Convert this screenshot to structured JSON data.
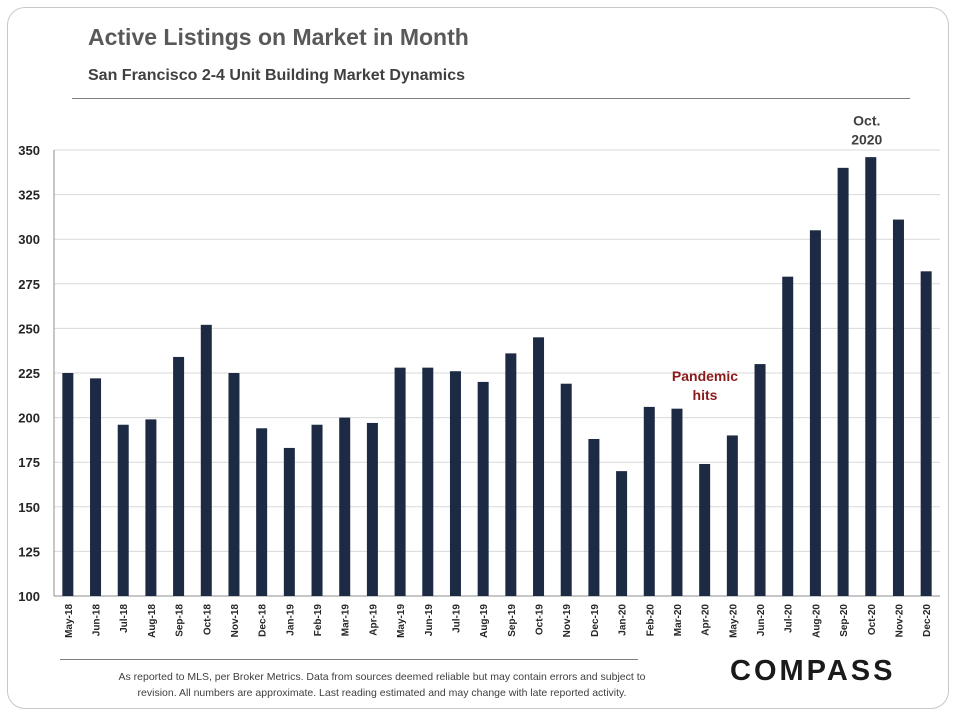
{
  "header": {
    "title": "Active Listings on Market in Month",
    "subtitle": "San Francisco 2-4 Unit Building Market Dynamics"
  },
  "footer": {
    "note_line1": "As reported to MLS, per Broker Metrics. Data from sources deemed reliable but may contain errors and subject to",
    "note_line2": "revision. All numbers are approximate.  Last reading estimated and may change with late reported activity.",
    "logo": "COMPASS"
  },
  "chart_data": {
    "type": "bar",
    "title": "Active Listings on Market in Month",
    "subtitle": "San Francisco 2-4 Unit Building Market Dynamics",
    "xlabel": "",
    "ylabel": "",
    "ylim": [
      100,
      350
    ],
    "yticks": [
      100,
      125,
      150,
      175,
      200,
      225,
      250,
      275,
      300,
      325,
      350
    ],
    "grid": true,
    "bar_color": "#1c2a43",
    "categories": [
      "May-18",
      "Jun-18",
      "Jul-18",
      "Aug-18",
      "Sep-18",
      "Oct-18",
      "Nov-18",
      "Dec-18",
      "Jan-19",
      "Feb-19",
      "Mar-19",
      "Apr-19",
      "May-19",
      "Jun-19",
      "Jul-19",
      "Aug-19",
      "Sep-19",
      "Oct-19",
      "Nov-19",
      "Dec-19",
      "Jan-20",
      "Feb-20",
      "Mar-20",
      "Apr-20",
      "May-20",
      "Jun-20",
      "Jul-20",
      "Aug-20",
      "Sep-20",
      "Oct-20",
      "Nov-20",
      "Dec-20"
    ],
    "values": [
      225,
      222,
      196,
      199,
      234,
      252,
      225,
      194,
      183,
      196,
      200,
      197,
      228,
      228,
      226,
      220,
      236,
      245,
      219,
      188,
      170,
      206,
      205,
      174,
      190,
      230,
      279,
      305,
      340,
      346,
      311,
      282
    ],
    "annotations": [
      {
        "lines": [
          "Pandemic",
          "hits"
        ],
        "category": "Mar-20",
        "y": 210,
        "color": "#8b1a1a"
      },
      {
        "lines": [
          "Oct.",
          "2020"
        ],
        "category": "Oct-20",
        "y": 353,
        "color": "#404040"
      }
    ]
  }
}
